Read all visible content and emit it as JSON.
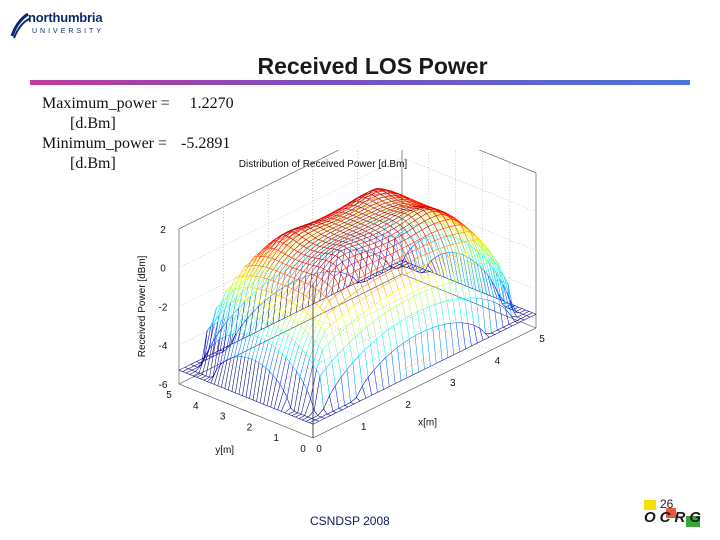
{
  "logo": {
    "name": "northumbria",
    "sub": "UNIVERSITY",
    "icon": "northumbria-swoosh-icon",
    "color": "#0c2a6b"
  },
  "slide": {
    "title": "Received LOS Power",
    "stats": {
      "max_label": "Maximum_power =",
      "max_value": "1.2270",
      "min_label": "Minimum_power =",
      "min_value": "-5.2891",
      "unit": "[d.Bm]"
    },
    "footer": "CSNDSP 2008",
    "page_number": "26",
    "footer_logo": {
      "text": "OCRG",
      "colors": [
        "#f5e000",
        "#e83a1e",
        "#3aa63a"
      ]
    }
  },
  "chart_data": {
    "type": "surface",
    "title": "Distribution of Received Power [d.Bm]",
    "xlabel": "x[m]",
    "ylabel": "y[m]",
    "zlabel": "Received Power [dBm]",
    "x_ticks": [
      "0",
      "1",
      "2",
      "3",
      "4",
      "5"
    ],
    "y_ticks": [
      "0",
      "1",
      "2",
      "3",
      "4",
      "5"
    ],
    "z_ticks": [
      "-6",
      "-4",
      "-2",
      "0",
      "2"
    ],
    "xlim": [
      0,
      5
    ],
    "ylim": [
      0,
      5
    ],
    "zlim": [
      -6,
      2
    ],
    "z_max": 1.227,
    "z_min": -5.2891,
    "colormap": "jet",
    "grid": true
  }
}
